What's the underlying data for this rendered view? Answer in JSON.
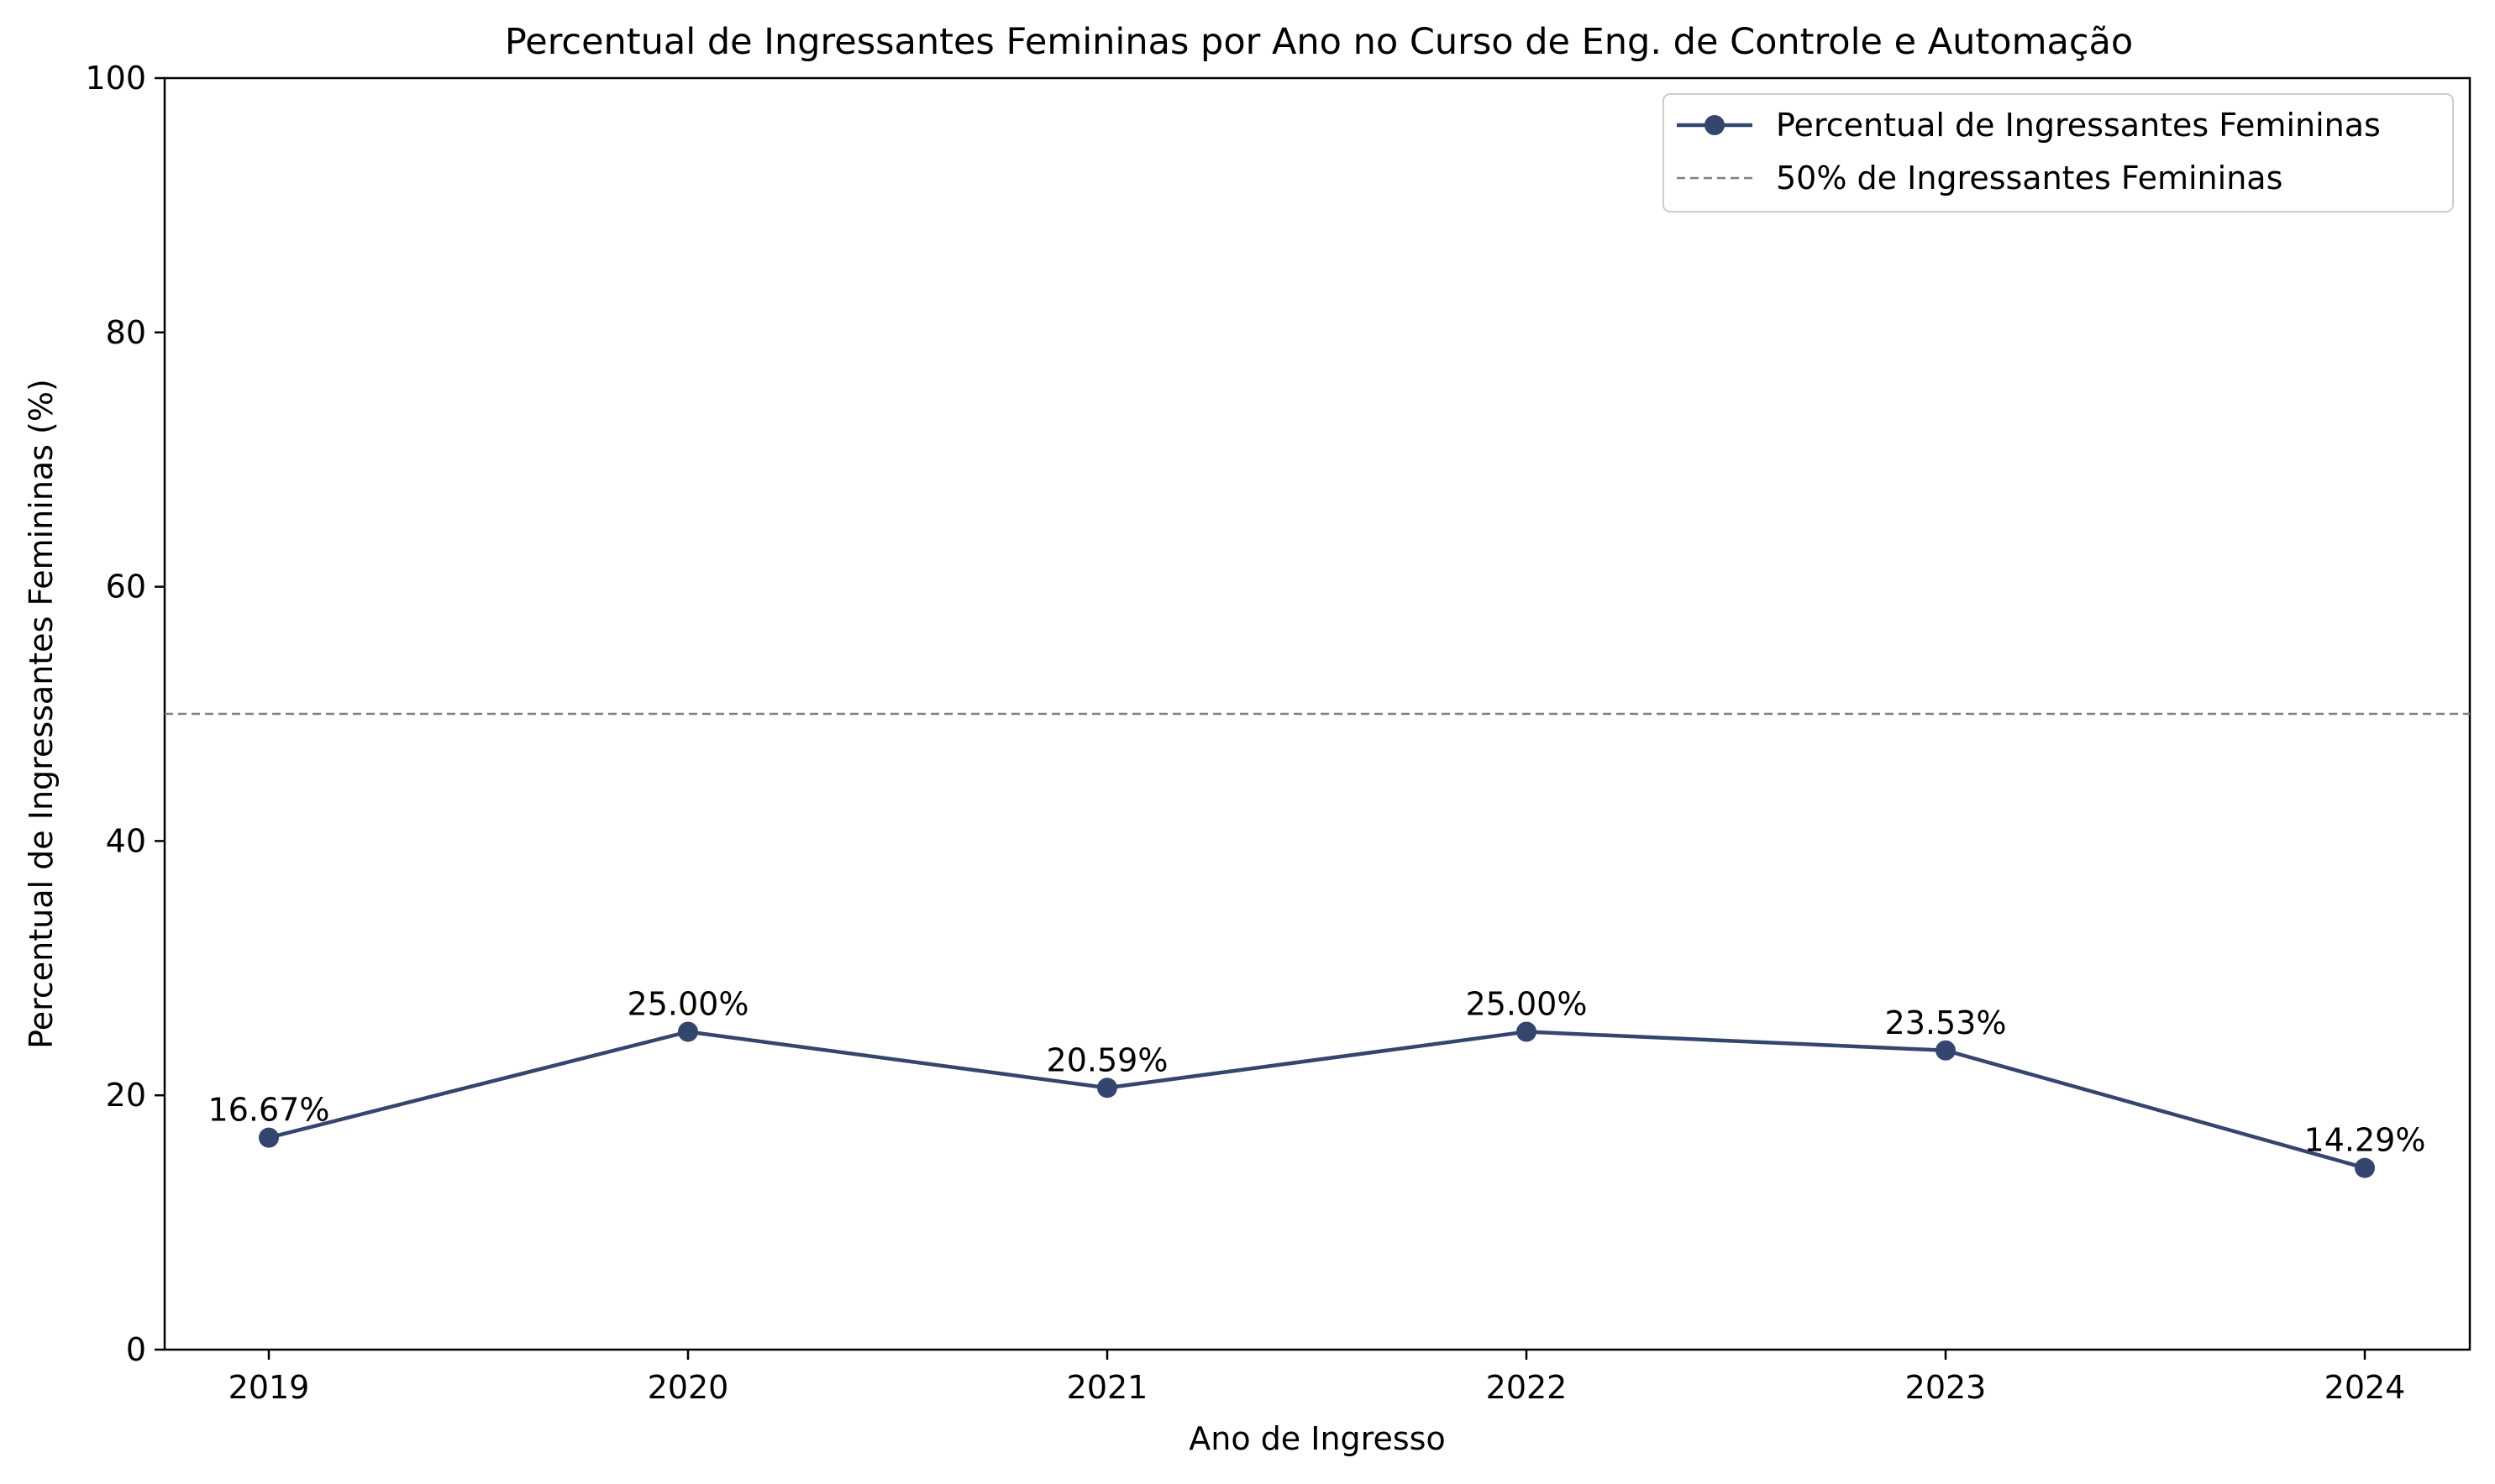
{
  "chart_data": {
    "type": "line",
    "title": "Percentual de Ingressantes Femininas por Ano no Curso de Eng. de Controle e Automação",
    "xlabel": "Ano de Ingresso",
    "ylabel": "Percentual de Ingressantes Femininas (%)",
    "categories": [
      "2019",
      "2020",
      "2021",
      "2022",
      "2023",
      "2024"
    ],
    "series": [
      {
        "name": "Percentual de Ingressantes Femininas",
        "values": [
          16.67,
          25.0,
          20.59,
          25.0,
          23.53,
          14.29
        ],
        "labels": [
          "16.67%",
          "25.00%",
          "20.59%",
          "25.00%",
          "23.53%",
          "14.29%"
        ],
        "color": "#34466e",
        "marker": "circle"
      }
    ],
    "reference_line": {
      "name": "50% de Ingressantes Femininas",
      "value": 50,
      "color": "#808080",
      "style": "dashed"
    },
    "ylim": [
      0,
      100
    ],
    "yticks": [
      0,
      20,
      40,
      60,
      80,
      100
    ],
    "grid": false,
    "legend_position": "top-right"
  }
}
